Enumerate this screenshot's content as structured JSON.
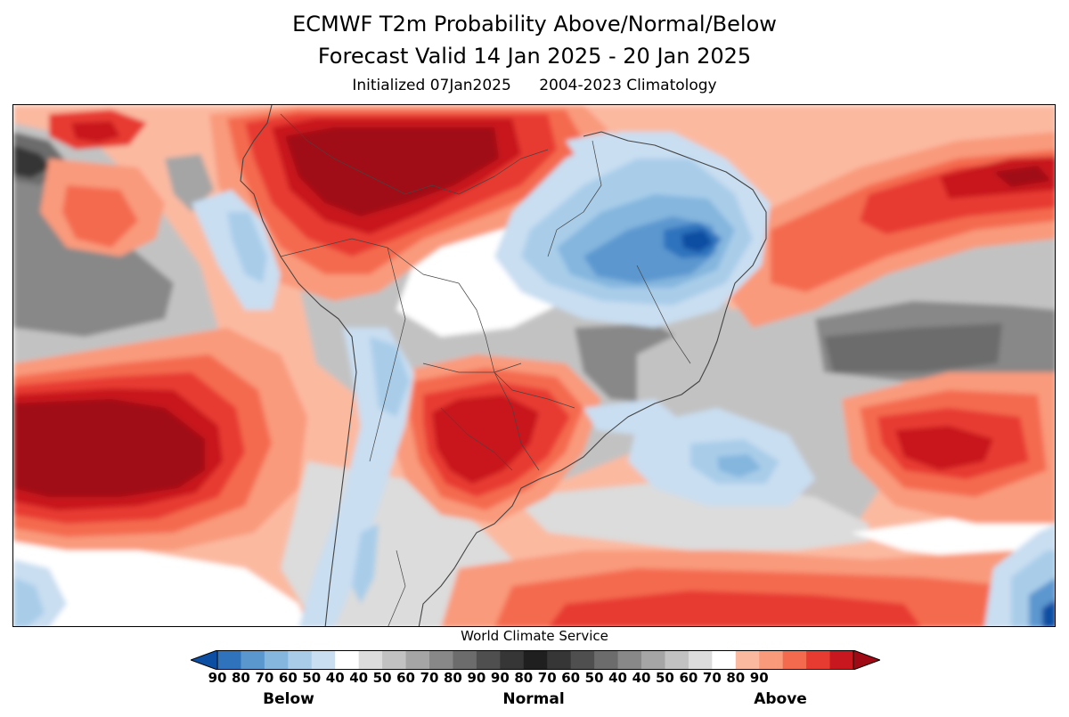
{
  "title": {
    "line1": "ECMWF T2m Probability Above/Normal/Below",
    "line2": "Forecast Valid 14 Jan 2025 - 20 Jan 2025",
    "initialized": "Initialized 07Jan2025",
    "climatology": "2004-2023 Climatology"
  },
  "credit": "World Climate Service",
  "legend": {
    "colors": [
      "#0b4ea2",
      "#2f73bd",
      "#5b97cf",
      "#84b6de",
      "#a9cde9",
      "#c9def1",
      "#ffffff",
      "#dcdcdc",
      "#c2c2c2",
      "#a5a5a5",
      "#888888",
      "#6c6c6c",
      "#4f4f4f",
      "#363636",
      "#1f1f1f",
      "#363636",
      "#4f4f4f",
      "#6c6c6c",
      "#888888",
      "#a5a5a5",
      "#c2c2c2",
      "#dcdcdc",
      "#ffffff",
      "#fbb9a0",
      "#f99a7b",
      "#f46a4f",
      "#e73a30",
      "#c8171f",
      "#a00a14"
    ],
    "ticks": [
      "90",
      "80",
      "70",
      "60",
      "50",
      "40",
      "40",
      "50",
      "60",
      "70",
      "80",
      "90",
      "90",
      "80",
      "70",
      "60",
      "50",
      "40",
      "40",
      "50",
      "60",
      "70",
      "80",
      "90"
    ],
    "below_label": "Below",
    "normal_label": "Normal",
    "above_label": "Above"
  },
  "map": {
    "colors": {
      "above_40": "#fbb9a0",
      "above_50": "#f99a7b",
      "above_60": "#f46a4f",
      "above_70": "#e73a30",
      "above_80": "#c8171f",
      "above_90": "#a00a14",
      "below_40": "#c9def1",
      "below_50": "#a9cde9",
      "below_60": "#84b6de",
      "below_70": "#5b97cf",
      "below_80": "#2f73bd",
      "below_90": "#0b4ea2",
      "normal_40": "#dcdcdc",
      "normal_50": "#c2c2c2",
      "normal_60": "#a5a5a5",
      "normal_70": "#888888",
      "normal_80": "#6c6c6c",
      "normal_90": "#363636",
      "white": "#ffffff",
      "border": "#444444"
    }
  }
}
